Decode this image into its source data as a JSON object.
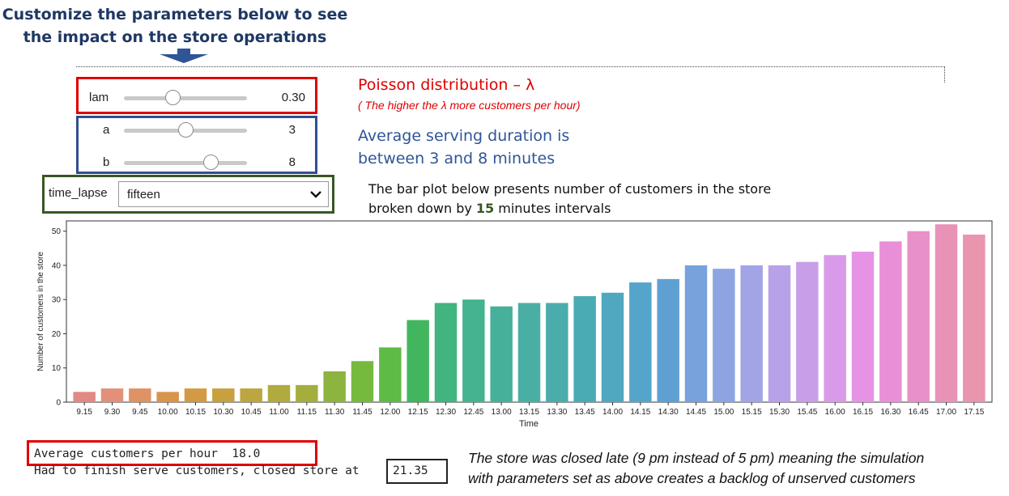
{
  "header": {
    "line1": "Customize the parameters below to see",
    "line2": "the impact on the store operations"
  },
  "controls": {
    "lam": {
      "label": "lam",
      "value": "0.30",
      "fraction": 0.4
    },
    "a": {
      "label": "a",
      "value": "3",
      "fraction": 0.5
    },
    "b": {
      "label": "b",
      "value": "8",
      "fraction": 0.71
    },
    "time_lapse": {
      "label": "time_lapse",
      "value": "fifteen"
    }
  },
  "annotations": {
    "poisson_title": "Poisson distribution – λ",
    "poisson_sub": "( The higher the  λ more customers per hour)",
    "serving_line1": "Average serving duration is",
    "serving_line2": "between 3 and 8 minutes",
    "bar_desc_line1": "The bar plot below presents number of customers in the store",
    "bar_desc_pre": "broken down by ",
    "bar_desc_bold": "15",
    "bar_desc_post": " minutes intervals"
  },
  "chart_data": {
    "type": "bar",
    "title": "",
    "xlabel": "Time",
    "ylabel": "Number of customers in the store",
    "ylim": [
      0,
      53
    ],
    "yticks": [
      0,
      10,
      20,
      30,
      40,
      50
    ],
    "grid": false,
    "categories": [
      "9.15",
      "9.30",
      "9.45",
      "10.00",
      "10.15",
      "10.30",
      "10.45",
      "11.00",
      "11.15",
      "11.30",
      "11.45",
      "12.00",
      "12.15",
      "12.30",
      "12.45",
      "13.00",
      "13.15",
      "13.30",
      "13.45",
      "14.00",
      "14.15",
      "14.30",
      "14.45",
      "15.00",
      "15.15",
      "15.30",
      "15.45",
      "16.00",
      "16.15",
      "16.30",
      "16.45",
      "17.00",
      "17.15"
    ],
    "values": [
      3,
      4,
      4,
      3,
      4,
      4,
      4,
      5,
      5,
      9,
      12,
      16,
      24,
      29,
      30,
      28,
      29,
      29,
      31,
      32,
      35,
      36,
      40,
      39,
      40,
      40,
      41,
      43,
      44,
      47,
      50,
      52,
      49
    ],
    "colors": [
      "#e08a83",
      "#e3907a",
      "#df9264",
      "#d9944c",
      "#d29a44",
      "#c8a040",
      "#bda53f",
      "#b0aa3f",
      "#a3ae3f",
      "#8db43f",
      "#77b93f",
      "#5dbb46",
      "#42b65f",
      "#42b47f",
      "#45b290",
      "#47b09b",
      "#49afa4",
      "#4aadac",
      "#4babb5",
      "#4fa8c0",
      "#55a4cb",
      "#5fa0d3",
      "#77a2dc",
      "#8ea4e2",
      "#a3a4e6",
      "#b7a2e9",
      "#c89ee9",
      "#d99ae9",
      "#e693e6",
      "#e98fd8",
      "#e890c8",
      "#e892b8",
      "#e895ad"
    ]
  },
  "output": {
    "avg_line": "Average customers per hour  18.0",
    "closed_prefix": "Had to finish serve customers, closed store at ",
    "closed_time": "21.35"
  },
  "note": {
    "line1": "The store was closed late (9 pm instead of 5 pm) meaning the simulation",
    "line2": "with parameters set as above creates a backlog of unserved customers"
  }
}
